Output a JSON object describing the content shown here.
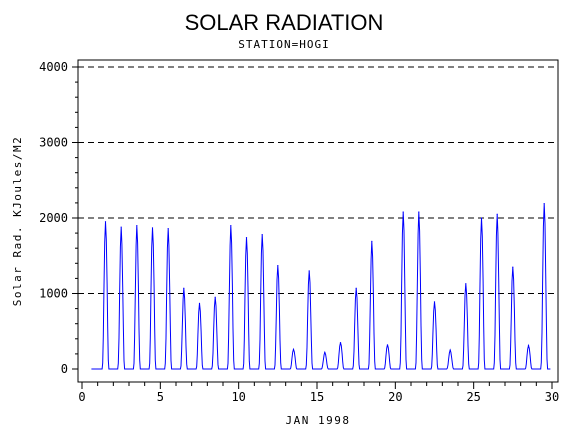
{
  "chart_data": {
    "type": "line",
    "title": "SOLAR RADIATION",
    "subtitle": "STATION=HOGI",
    "xlabel": "JAN 1998",
    "ylabel": "Solar Rad. KJoules/M2",
    "xlim": [
      0,
      30
    ],
    "ylim": [
      0,
      4000
    ],
    "x_ticks": [
      0,
      5,
      10,
      15,
      20,
      25,
      30
    ],
    "y_ticks": [
      0,
      1000,
      2000,
      3000,
      4000
    ],
    "grid": "horizontal-dashed",
    "series": [
      {
        "color": "#0000ff",
        "daily_peaks": [
          {
            "day": 1,
            "peak": 1950
          },
          {
            "day": 2,
            "peak": 1880
          },
          {
            "day": 3,
            "peak": 1900
          },
          {
            "day": 4,
            "peak": 1870
          },
          {
            "day": 5,
            "peak": 1860
          },
          {
            "day": 6,
            "peak": 1070
          },
          {
            "day": 7,
            "peak": 870
          },
          {
            "day": 8,
            "peak": 950
          },
          {
            "day": 9,
            "peak": 1900
          },
          {
            "day": 10,
            "peak": 1740
          },
          {
            "day": 11,
            "peak": 1780
          },
          {
            "day": 12,
            "peak": 1370
          },
          {
            "day": 13,
            "peak": 260
          },
          {
            "day": 14,
            "peak": 1300
          },
          {
            "day": 15,
            "peak": 220
          },
          {
            "day": 16,
            "peak": 350
          },
          {
            "day": 17,
            "peak": 1070
          },
          {
            "day": 18,
            "peak": 1690
          },
          {
            "day": 19,
            "peak": 320
          },
          {
            "day": 20,
            "peak": 2080
          },
          {
            "day": 21,
            "peak": 2080
          },
          {
            "day": 22,
            "peak": 890
          },
          {
            "day": 23,
            "peak": 250
          },
          {
            "day": 24,
            "peak": 1130
          },
          {
            "day": 25,
            "peak": 2000
          },
          {
            "day": 26,
            "peak": 2050
          },
          {
            "day": 27,
            "peak": 1350
          },
          {
            "day": 28,
            "peak": 310
          },
          {
            "day": 29,
            "peak": 2190
          }
        ]
      }
    ]
  }
}
